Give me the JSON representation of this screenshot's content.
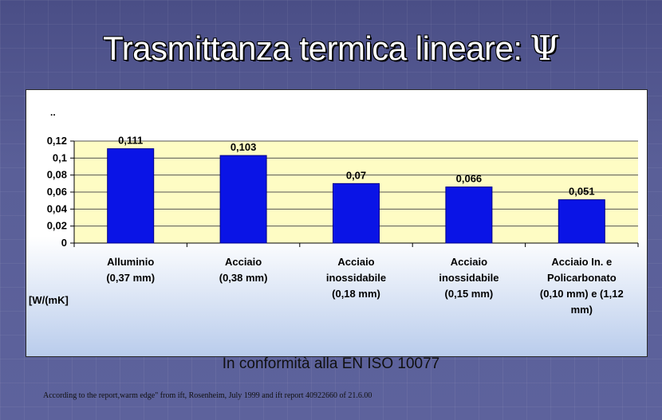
{
  "slide": {
    "title": "Trasmittanza termica lineare:",
    "title_symbol": "Ψ",
    "caption": "In conformità alla EN ISO 10077",
    "footnote": "According to the report,warm edge\" from ift, Rosenheim, July 1999 and ift report 40922660 of 21.6.00"
  },
  "colors": {
    "bar": "#0a14e6",
    "plot_background": "#fefcc4",
    "gridline": "#555555"
  },
  "chart_data": {
    "type": "bar",
    "title": "",
    "note_marker": "..",
    "ylabel": "[W/(mK]",
    "xlabel": "",
    "ylim": [
      0,
      0.12
    ],
    "yticks": [
      "0",
      "0,02",
      "0,04",
      "0,06",
      "0,08",
      "0,1",
      "0,12"
    ],
    "ytick_values": [
      0,
      0.02,
      0.04,
      0.06,
      0.08,
      0.1,
      0.12
    ],
    "grid": true,
    "categories": [
      [
        "Alluminio",
        "(0,37 mm)"
      ],
      [
        "Acciaio",
        "(0,38 mm)"
      ],
      [
        "Acciaio",
        "inossidabile",
        "(0,18 mm)"
      ],
      [
        "Acciaio",
        "inossidabile",
        "(0,15 mm)"
      ],
      [
        "Acciaio In. e",
        "Policarbonato",
        "(0,10 mm) e (1,12",
        "mm)"
      ]
    ],
    "values": [
      0.111,
      0.103,
      0.07,
      0.066,
      0.051
    ],
    "value_labels": [
      "0,111",
      "0,103",
      "0,07",
      "0,066",
      "0,051"
    ]
  }
}
